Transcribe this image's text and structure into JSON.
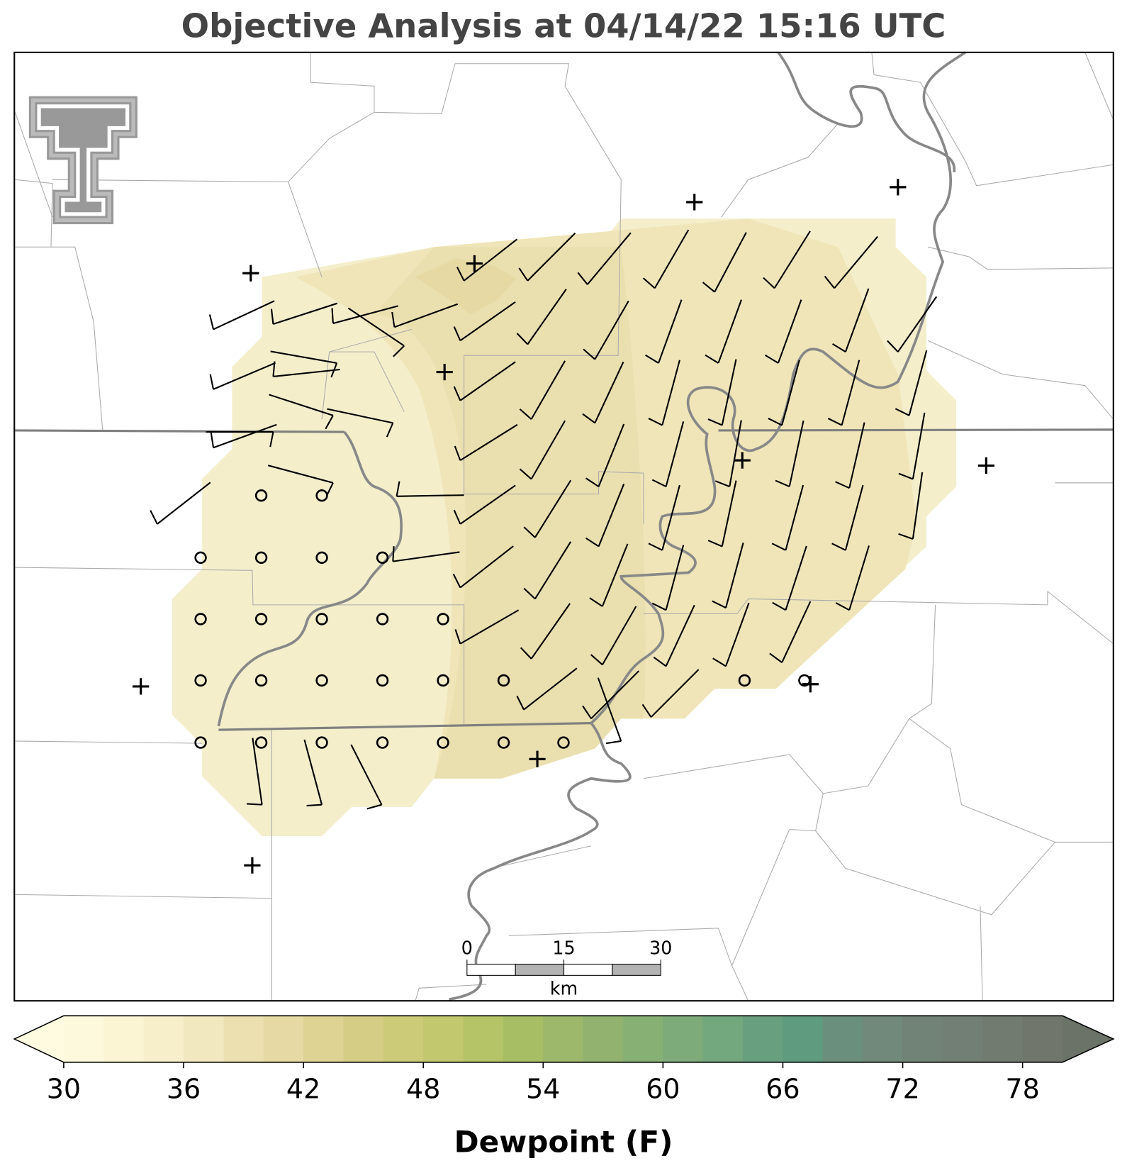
{
  "title": "Objective Analysis at 04/14/22 15:16 UTC",
  "colorbar": {
    "label": "Dewpoint (F)",
    "levels": [
      30,
      32,
      34,
      36,
      38,
      40,
      42,
      44,
      46,
      48,
      50,
      52,
      54,
      56,
      58,
      60,
      62,
      64,
      66,
      68,
      70,
      72,
      74,
      76,
      78,
      80
    ],
    "colors": [
      "#fdf9dc",
      "#fbf5d3",
      "#f7efca",
      "#f2e8bf",
      "#ede0b0",
      "#e6d9a3",
      "#dfd394",
      "#d5cc85",
      "#cccb77",
      "#c2c86d",
      "#b5c466",
      "#a8be64",
      "#9db86a",
      "#91b36f",
      "#87b075",
      "#7dab79",
      "#73a77d",
      "#689f7e",
      "#5f9b7f",
      "#6a907d",
      "#70897a",
      "#718377",
      "#727f74",
      "#717b70",
      "#70766b"
    ],
    "under_color": "#fefbe0",
    "over_color": "#6b7267",
    "ticks": [
      30,
      36,
      42,
      48,
      54,
      60,
      66,
      72,
      78
    ]
  },
  "scale_bar": {
    "range": [
      0,
      30
    ],
    "ticks": [
      0,
      15,
      30
    ],
    "unit": "km"
  }
}
